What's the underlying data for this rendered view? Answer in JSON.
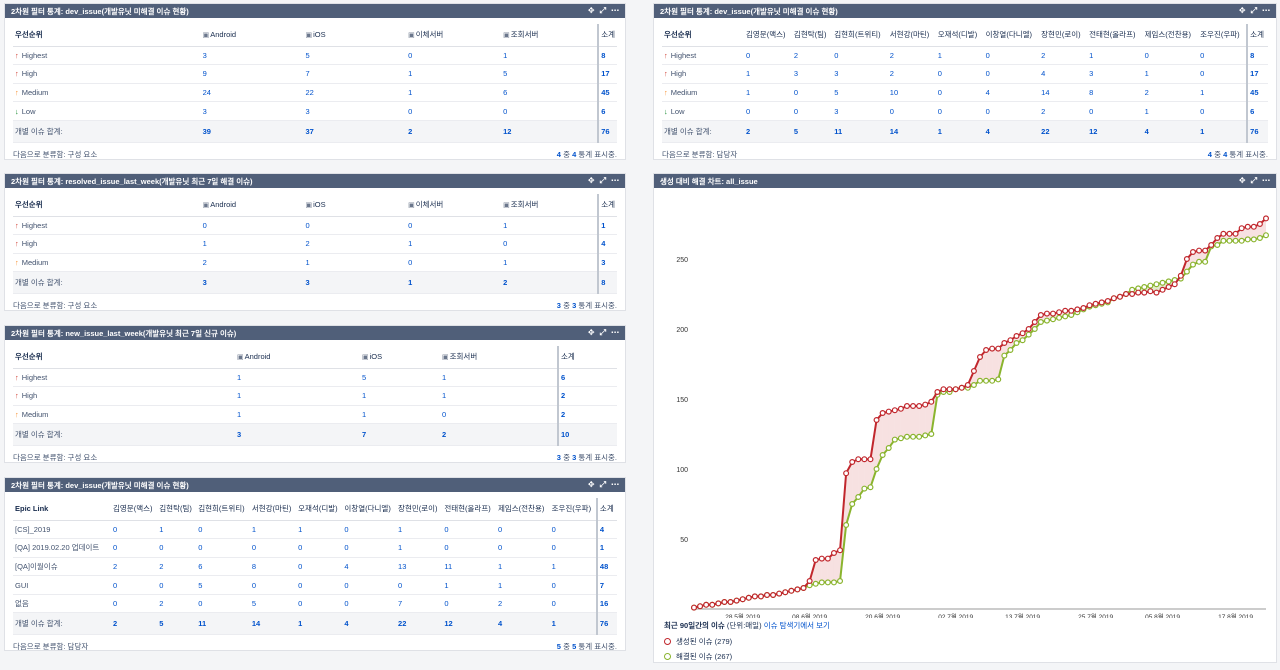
{
  "colors": {
    "highest": "#d04437",
    "high": "#d04437",
    "medium": "#f79232",
    "low": "#14892c",
    "created": "#c1272d",
    "resolved": "#8ab42e"
  },
  "g1": {
    "title": "2차원 필터 통계: dev_issue(개발유닛 미해결 이슈 현황)",
    "headers": [
      "우선순위",
      "Android",
      "iOS",
      "이체서버",
      "조회서버",
      "소계"
    ],
    "rows": [
      {
        "label": "Highest",
        "arrow": "↑",
        "level": "highest",
        "vals": [
          "3",
          "5",
          "0",
          "1",
          "8"
        ]
      },
      {
        "label": "High",
        "arrow": "↑",
        "level": "high",
        "vals": [
          "9",
          "7",
          "1",
          "5",
          "17"
        ]
      },
      {
        "label": "Medium",
        "arrow": "↑",
        "level": "medium",
        "vals": [
          "24",
          "22",
          "1",
          "6",
          "45"
        ]
      },
      {
        "label": "Low",
        "arrow": "↓",
        "level": "low",
        "vals": [
          "3",
          "3",
          "0",
          "0",
          "6"
        ]
      }
    ],
    "total_label": "개별 이슈 합계:",
    "totals": [
      "39",
      "37",
      "2",
      "12",
      "76"
    ],
    "foot_left": "다음으로 분류함: 구성 요소",
    "foot_a": "4",
    "foot_mid": "중",
    "foot_b": "4",
    "foot_right": "통계 표시중."
  },
  "g2": {
    "title": "2차원 필터 통계: resolved_issue_last_week(개발유닛 최근 7일 해결 이슈)",
    "headers": [
      "우선순위",
      "Android",
      "iOS",
      "이체서버",
      "조회서버",
      "소계"
    ],
    "rows": [
      {
        "label": "Highest",
        "arrow": "↑",
        "level": "highest",
        "vals": [
          "0",
          "0",
          "0",
          "1",
          "1"
        ]
      },
      {
        "label": "High",
        "arrow": "↑",
        "level": "high",
        "vals": [
          "1",
          "2",
          "1",
          "0",
          "4"
        ]
      },
      {
        "label": "Medium",
        "arrow": "↑",
        "level": "medium",
        "vals": [
          "2",
          "1",
          "0",
          "1",
          "3"
        ]
      }
    ],
    "total_label": "개별 이슈 합계:",
    "totals": [
      "3",
      "3",
      "1",
      "2",
      "8"
    ],
    "foot_left": "다음으로 분류함: 구성 요소",
    "foot_a": "3",
    "foot_mid": "중",
    "foot_b": "3",
    "foot_right": "통계 표시중."
  },
  "g3": {
    "title": "2차원 필터 통계: new_issue_last_week(개발유닛 최근 7일 신규 이슈)",
    "headers": [
      "우선순위",
      "Android",
      "iOS",
      "조회서버",
      "소계"
    ],
    "rows": [
      {
        "label": "Highest",
        "arrow": "↑",
        "level": "highest",
        "vals": [
          "1",
          "5",
          "1",
          "6"
        ]
      },
      {
        "label": "High",
        "arrow": "↑",
        "level": "high",
        "vals": [
          "1",
          "1",
          "1",
          "2"
        ]
      },
      {
        "label": "Medium",
        "arrow": "↑",
        "level": "medium",
        "vals": [
          "1",
          "1",
          "0",
          "2"
        ]
      }
    ],
    "total_label": "개별 이슈 합계:",
    "totals": [
      "3",
      "7",
      "2",
      "10"
    ],
    "foot_left": "다음으로 분류함: 구성 요소",
    "foot_a": "3",
    "foot_mid": "중",
    "foot_b": "3",
    "foot_right": "통계 표시중."
  },
  "g4": {
    "title": "2차원 필터 통계: dev_issue(개발유닛 미해결 이슈 현황)",
    "headers": [
      "Epic Link",
      "김영문(맥스)",
      "김현탁(팀)",
      "김현희(트위티)",
      "서현강(마틴)",
      "오재석(디발)",
      "이창열(다니엘)",
      "장현민(로이)",
      "전태현(올라프)",
      "제임스(전찬용)",
      "조우진(우파)",
      "소계"
    ],
    "rows": [
      {
        "label": "[CS]_2019",
        "vals": [
          "0",
          "1",
          "0",
          "1",
          "1",
          "0",
          "1",
          "0",
          "0",
          "0",
          "4"
        ]
      },
      {
        "label": "[QA] 2019.02.20 업데이트",
        "vals": [
          "0",
          "0",
          "0",
          "0",
          "0",
          "0",
          "1",
          "0",
          "0",
          "0",
          "1"
        ]
      },
      {
        "label": "[QA]이월이슈",
        "vals": [
          "2",
          "2",
          "6",
          "8",
          "0",
          "4",
          "13",
          "11",
          "1",
          "1",
          "48"
        ]
      },
      {
        "label": "GUI",
        "vals": [
          "0",
          "0",
          "5",
          "0",
          "0",
          "0",
          "0",
          "1",
          "1",
          "0",
          "7"
        ]
      },
      {
        "label": "없음",
        "vals": [
          "0",
          "2",
          "0",
          "5",
          "0",
          "0",
          "7",
          "0",
          "2",
          "0",
          "16"
        ]
      }
    ],
    "total_label": "개별 이슈 합계:",
    "totals": [
      "2",
      "5",
      "11",
      "14",
      "1",
      "4",
      "22",
      "12",
      "4",
      "1",
      "76"
    ],
    "foot_left": "다음으로 분류함: 담당자",
    "foot_a": "5",
    "foot_mid": "중",
    "foot_b": "5",
    "foot_right": "통계 표시중."
  },
  "g5": {
    "title": "2차원 필터 통계: dev_issue(개발유닛 미해결 이슈 현황)",
    "headers": [
      "우선순위",
      "김영문(맥스)",
      "김현탁(팀)",
      "김현희(트위티)",
      "서현강(마틴)",
      "오재석(디발)",
      "이창열(다니엘)",
      "장현민(로이)",
      "전태현(올라프)",
      "제임스(전찬용)",
      "조우진(우파)",
      "소계"
    ],
    "rows": [
      {
        "label": "Highest",
        "arrow": "↑",
        "level": "highest",
        "vals": [
          "0",
          "2",
          "0",
          "2",
          "1",
          "0",
          "2",
          "1",
          "0",
          "0",
          "8"
        ]
      },
      {
        "label": "High",
        "arrow": "↑",
        "level": "high",
        "vals": [
          "1",
          "3",
          "3",
          "2",
          "0",
          "0",
          "4",
          "3",
          "1",
          "0",
          "17"
        ]
      },
      {
        "label": "Medium",
        "arrow": "↑",
        "level": "medium",
        "vals": [
          "1",
          "0",
          "5",
          "10",
          "0",
          "4",
          "14",
          "8",
          "2",
          "1",
          "45"
        ]
      },
      {
        "label": "Low",
        "arrow": "↓",
        "level": "low",
        "vals": [
          "0",
          "0",
          "3",
          "0",
          "0",
          "0",
          "2",
          "0",
          "1",
          "0",
          "6"
        ]
      }
    ],
    "total_label": "개별 이슈 합계:",
    "totals": [
      "2",
      "5",
      "11",
      "14",
      "1",
      "4",
      "22",
      "12",
      "4",
      "1",
      "76"
    ],
    "foot_left": "다음으로 분류함: 담당자",
    "foot_a": "4",
    "foot_mid": "중",
    "foot_b": "4",
    "foot_right": "통계 표시중."
  },
  "chart": {
    "title": "생성 대비 해결 차트: all_issue",
    "legend_title": "최근 90일간의 이슈",
    "legend_unit": "(단위:매일)",
    "legend_link": "이슈 탐색기에서 보기",
    "created_label": "생성된 이슈 (279)",
    "resolved_label": "해결된 이슈 (267)"
  },
  "chart_data": {
    "type": "line",
    "title": "생성 대비 해결 차트: all_issue",
    "ylim": [
      0,
      290
    ],
    "yticks": [
      50,
      100,
      150,
      200,
      250
    ],
    "xlabels": [
      "28 5월 2019",
      "08 6월 2019",
      "20 6월 2019",
      "02 7월 2019",
      "13 7월 2019",
      "25 7월 2019",
      "05 8월 2019",
      "17 8월 2019"
    ],
    "xlabel_idx": [
      8,
      19,
      31,
      43,
      54,
      66,
      77,
      89
    ],
    "series": [
      {
        "name": "생성된 이슈",
        "values": [
          1,
          2,
          3,
          3,
          4,
          5,
          5,
          6,
          7,
          8,
          9,
          9,
          10,
          10,
          11,
          12,
          13,
          14,
          15,
          20,
          35,
          36,
          36,
          40,
          42,
          97,
          105,
          107,
          107,
          107,
          135,
          140,
          141,
          142,
          143,
          145,
          145,
          145,
          146,
          148,
          155,
          157,
          157,
          157,
          158,
          160,
          170,
          180,
          185,
          186,
          186,
          190,
          192,
          195,
          197,
          200,
          205,
          210,
          211,
          211,
          212,
          213,
          213,
          214,
          215,
          217,
          218,
          219,
          220,
          222,
          223,
          225,
          225,
          226,
          226,
          227,
          226,
          228,
          230,
          232,
          238,
          250,
          255,
          256,
          256,
          260,
          265,
          268,
          268,
          268,
          272,
          273,
          273,
          275,
          279
        ]
      },
      {
        "name": "해결된 이슈",
        "values": [
          1,
          2,
          3,
          3,
          4,
          5,
          5,
          6,
          7,
          8,
          9,
          9,
          10,
          10,
          11,
          12,
          13,
          14,
          15,
          17,
          18,
          19,
          19,
          19,
          20,
          60,
          75,
          80,
          86,
          87,
          100,
          110,
          115,
          121,
          122,
          123,
          123,
          123,
          124,
          125,
          153,
          155,
          155,
          157,
          158,
          158,
          160,
          163,
          163,
          163,
          164,
          181,
          185,
          190,
          192,
          196,
          200,
          205,
          206,
          207,
          208,
          209,
          210,
          212,
          214,
          216,
          217,
          218,
          219,
          222,
          223,
          225,
          228,
          229,
          230,
          231,
          232,
          233,
          234,
          235,
          236,
          241,
          246,
          248,
          248,
          259,
          260,
          263,
          263,
          263,
          263,
          264,
          264,
          265,
          267
        ]
      }
    ]
  }
}
